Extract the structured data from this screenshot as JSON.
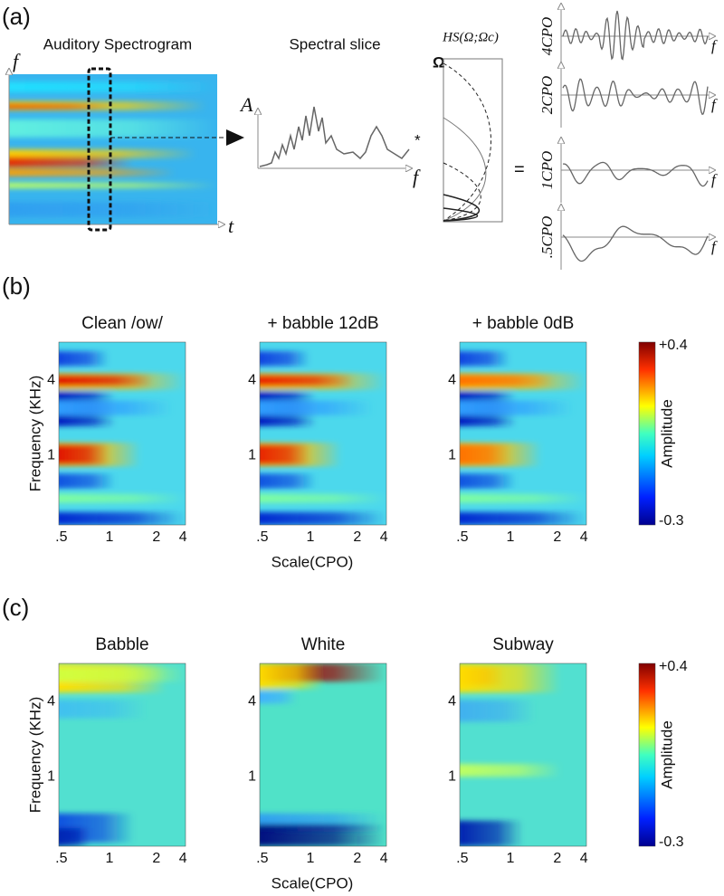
{
  "panel_a": {
    "label": "(a)",
    "spectrogram": {
      "title": "Auditory Spectrogram",
      "y_axis": "f",
      "x_axis": "t"
    },
    "slice": {
      "title": "Spectral slice",
      "y_axis": "A",
      "x_axis": "f",
      "operator": "*"
    },
    "filter": {
      "title": "HS(Ω;Ωc)",
      "y_axis": "Ω"
    },
    "equals": "=",
    "scales": {
      "labels": [
        "4CPO",
        "2CPO",
        "1CPO",
        ".5CPO"
      ],
      "x_axis": "f"
    }
  },
  "panel_b": {
    "label": "(b)",
    "titles": [
      "Clean /ow/",
      "+ babble 12dB",
      "+ babble 0dB"
    ],
    "y_label": "Frequency (KHz)",
    "yticks": [
      "4",
      "1"
    ],
    "xticks": [
      ".5",
      "1",
      "2",
      "4"
    ],
    "x_label": "Scale(CPO)",
    "colorbar": {
      "label": "Amplitude",
      "max": "+0.4",
      "min": "-0.3"
    }
  },
  "panel_c": {
    "label": "(c)",
    "titles": [
      "Babble",
      "White",
      "Subway"
    ],
    "y_label": "Frequency (KHz)",
    "yticks": [
      "4",
      "1"
    ],
    "xticks": [
      ".5",
      "1",
      "2",
      "4"
    ],
    "x_label": "Scale(CPO)",
    "colorbar": {
      "label": "Amplitude",
      "max": "+0.4",
      "min": "-0.3"
    }
  }
}
